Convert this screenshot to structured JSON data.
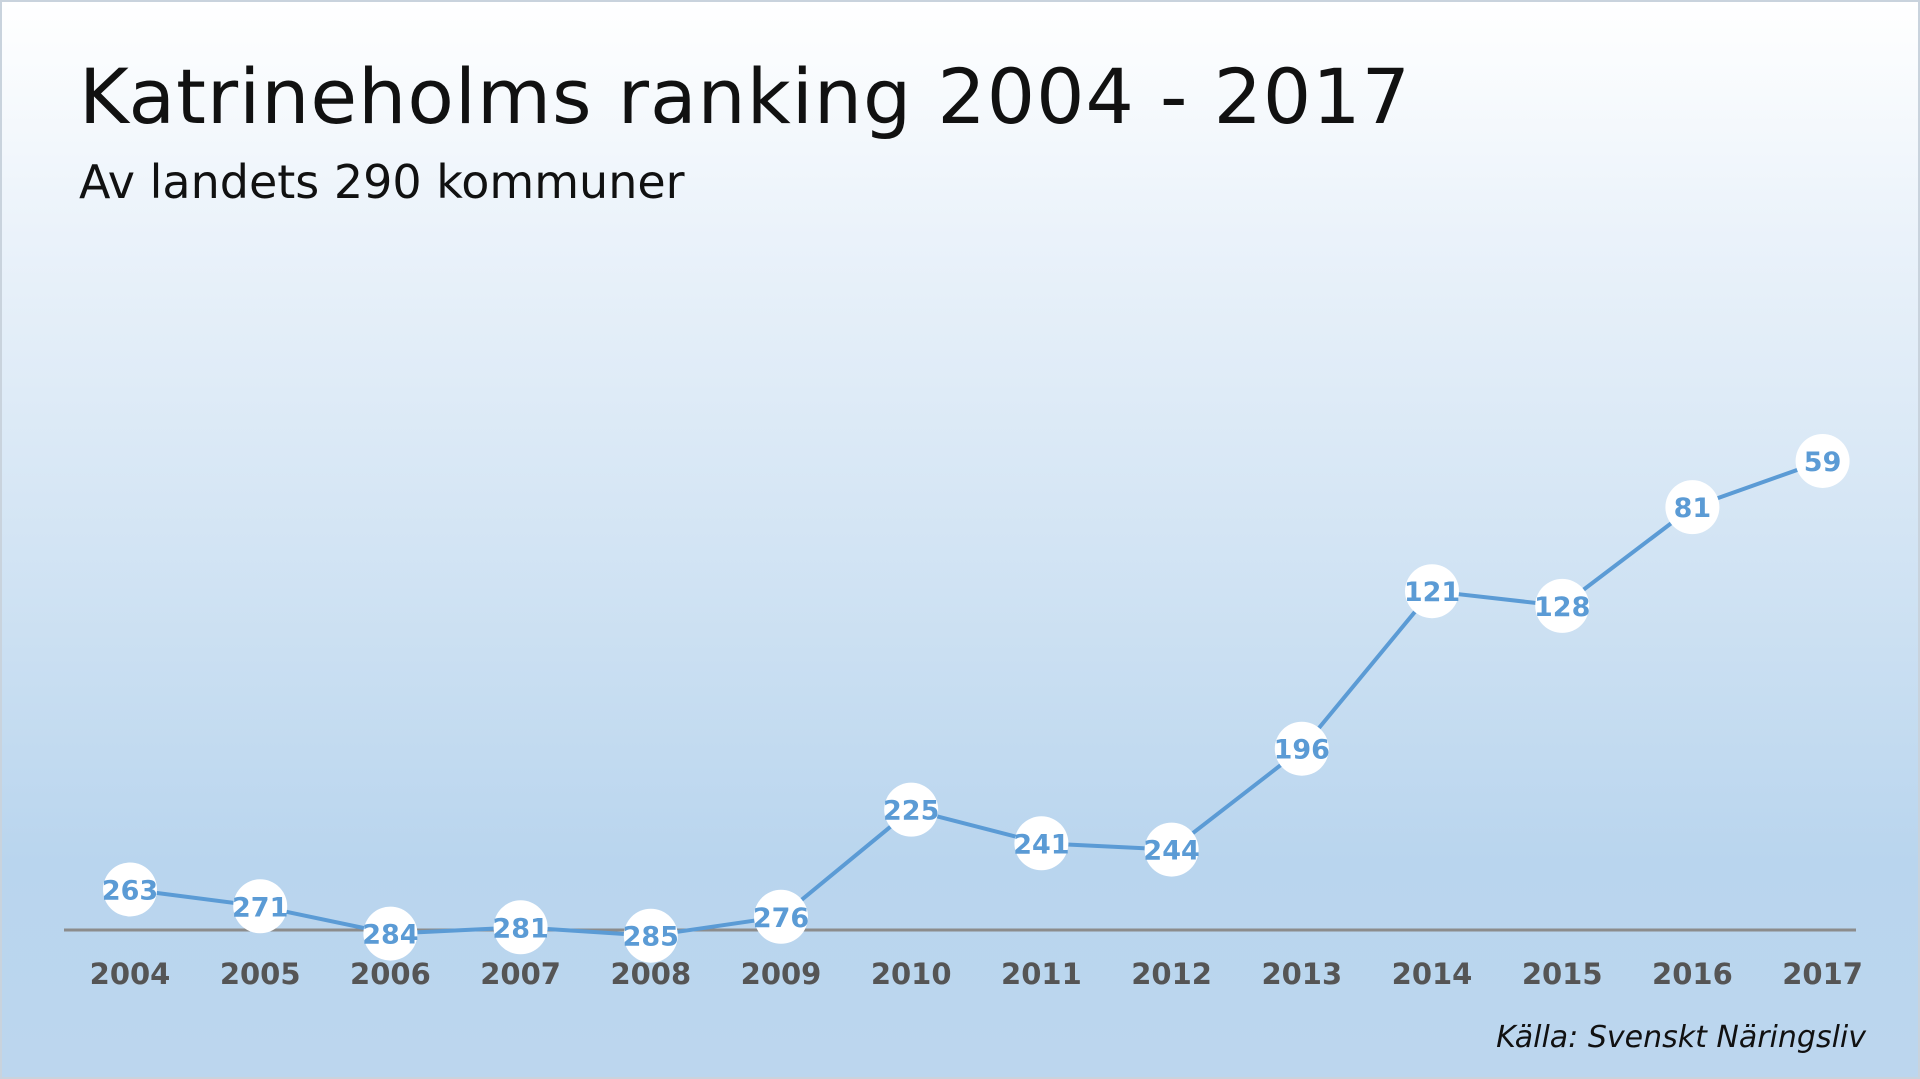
{
  "chart_data": {
    "type": "line",
    "title": "Katrineholms ranking 2004 - 2017",
    "subtitle": "Av landets 290 kommuner",
    "source": "Källa: Svenskt Näringsliv",
    "xlabel": "",
    "ylabel": "",
    "categories": [
      "2004",
      "2005",
      "2006",
      "2007",
      "2008",
      "2009",
      "2010",
      "2011",
      "2012",
      "2013",
      "2014",
      "2015",
      "2016",
      "2017"
    ],
    "series": [
      {
        "values": [
          263,
          271,
          284,
          281,
          285,
          276,
          225,
          241,
          244,
          196,
          121,
          128,
          81,
          59
        ],
        "labels": [
          "263",
          "271",
          "284",
          "281",
          "285",
          "276",
          "225",
          "241",
          "244",
          "196",
          "121",
          "128",
          "81",
          "59"
        ]
      }
    ],
    "y_axis": "reversed rank (best at top)",
    "ylim": [
      290,
      0
    ],
    "grid": false,
    "legend": "none",
    "colors": {
      "line": "#5b9bd5",
      "label_text": "#5b9bd5",
      "marker_fill": "#ffffff",
      "axis": "#8c8c8c",
      "tick_text": "#555555"
    }
  }
}
